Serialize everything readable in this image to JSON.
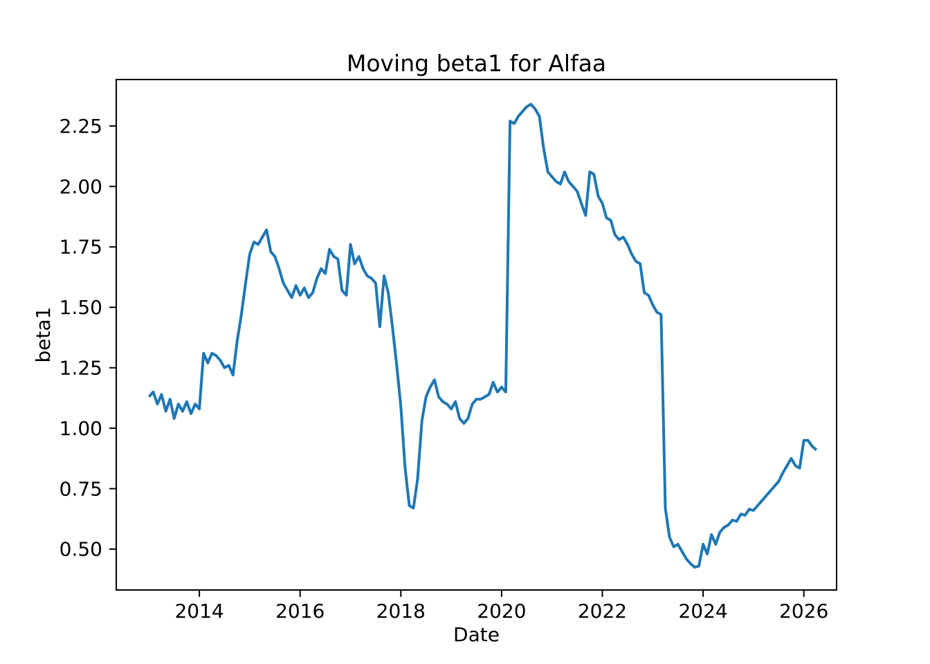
{
  "chart_data": {
    "type": "line",
    "title": "Moving beta1 for Alfaa",
    "xlabel": "Date",
    "ylabel": "beta1",
    "grid": false,
    "legend_position": "none",
    "line_color": "#1f77b4",
    "axis_color": "#000000",
    "background_color": "#ffffff",
    "xlim": [
      2012.35,
      2026.65
    ],
    "ylim": [
      0.331,
      2.442
    ],
    "x_tick_values": [
      2014,
      2016,
      2018,
      2020,
      2022,
      2024,
      2026
    ],
    "x_tick_labels": [
      "2014",
      "2016",
      "2018",
      "2020",
      "2022",
      "2024",
      "2026"
    ],
    "y_tick_values": [
      0.5,
      0.75,
      1.0,
      1.25,
      1.5,
      1.75,
      2.0,
      2.25
    ],
    "y_tick_labels": [
      "0.50",
      "0.75",
      "1.00",
      "1.25",
      "1.50",
      "1.75",
      "2.00",
      "2.25"
    ],
    "x_unit": "decimal_year",
    "series": [
      {
        "name": "Moving beta1",
        "points": [
          [
            2013.0,
            1.13
          ],
          [
            2013.083,
            1.15
          ],
          [
            2013.167,
            1.1
          ],
          [
            2013.25,
            1.14
          ],
          [
            2013.333,
            1.07
          ],
          [
            2013.417,
            1.12
          ],
          [
            2013.5,
            1.04
          ],
          [
            2013.583,
            1.1
          ],
          [
            2013.667,
            1.07
          ],
          [
            2013.75,
            1.11
          ],
          [
            2013.833,
            1.06
          ],
          [
            2013.917,
            1.1
          ],
          [
            2014.0,
            1.08
          ],
          [
            2014.083,
            1.31
          ],
          [
            2014.167,
            1.27
          ],
          [
            2014.25,
            1.31
          ],
          [
            2014.333,
            1.3
          ],
          [
            2014.417,
            1.28
          ],
          [
            2014.5,
            1.25
          ],
          [
            2014.583,
            1.26
          ],
          [
            2014.667,
            1.22
          ],
          [
            2014.75,
            1.36
          ],
          [
            2014.833,
            1.47
          ],
          [
            2014.917,
            1.6
          ],
          [
            2015.0,
            1.72
          ],
          [
            2015.083,
            1.77
          ],
          [
            2015.167,
            1.76
          ],
          [
            2015.25,
            1.79
          ],
          [
            2015.333,
            1.82
          ],
          [
            2015.417,
            1.73
          ],
          [
            2015.5,
            1.71
          ],
          [
            2015.583,
            1.66
          ],
          [
            2015.667,
            1.6
          ],
          [
            2015.75,
            1.57
          ],
          [
            2015.833,
            1.54
          ],
          [
            2015.917,
            1.59
          ],
          [
            2016.0,
            1.55
          ],
          [
            2016.083,
            1.58
          ],
          [
            2016.167,
            1.54
          ],
          [
            2016.25,
            1.56
          ],
          [
            2016.333,
            1.62
          ],
          [
            2016.417,
            1.66
          ],
          [
            2016.5,
            1.64
          ],
          [
            2016.583,
            1.74
          ],
          [
            2016.667,
            1.71
          ],
          [
            2016.75,
            1.7
          ],
          [
            2016.833,
            1.57
          ],
          [
            2016.917,
            1.55
          ],
          [
            2017.0,
            1.76
          ],
          [
            2017.083,
            1.68
          ],
          [
            2017.167,
            1.71
          ],
          [
            2017.25,
            1.66
          ],
          [
            2017.333,
            1.63
          ],
          [
            2017.417,
            1.62
          ],
          [
            2017.5,
            1.6
          ],
          [
            2017.583,
            1.42
          ],
          [
            2017.667,
            1.63
          ],
          [
            2017.75,
            1.56
          ],
          [
            2017.833,
            1.42
          ],
          [
            2017.917,
            1.26
          ],
          [
            2018.0,
            1.09
          ],
          [
            2018.083,
            0.84
          ],
          [
            2018.167,
            0.68
          ],
          [
            2018.25,
            0.67
          ],
          [
            2018.333,
            0.79
          ],
          [
            2018.417,
            1.03
          ],
          [
            2018.5,
            1.13
          ],
          [
            2018.583,
            1.17
          ],
          [
            2018.667,
            1.2
          ],
          [
            2018.75,
            1.13
          ],
          [
            2018.833,
            1.11
          ],
          [
            2018.917,
            1.1
          ],
          [
            2019.0,
            1.08
          ],
          [
            2019.083,
            1.11
          ],
          [
            2019.167,
            1.04
          ],
          [
            2019.25,
            1.02
          ],
          [
            2019.333,
            1.04
          ],
          [
            2019.417,
            1.1
          ],
          [
            2019.5,
            1.12
          ],
          [
            2019.583,
            1.12
          ],
          [
            2019.667,
            1.13
          ],
          [
            2019.75,
            1.14
          ],
          [
            2019.833,
            1.19
          ],
          [
            2019.917,
            1.15
          ],
          [
            2020.0,
            1.17
          ],
          [
            2020.083,
            1.15
          ],
          [
            2020.167,
            2.27
          ],
          [
            2020.25,
            2.26
          ],
          [
            2020.333,
            2.29
          ],
          [
            2020.417,
            2.31
          ],
          [
            2020.5,
            2.33
          ],
          [
            2020.583,
            2.34
          ],
          [
            2020.667,
            2.32
          ],
          [
            2020.75,
            2.29
          ],
          [
            2020.833,
            2.16
          ],
          [
            2020.917,
            2.06
          ],
          [
            2021.0,
            2.04
          ],
          [
            2021.083,
            2.02
          ],
          [
            2021.167,
            2.01
          ],
          [
            2021.25,
            2.06
          ],
          [
            2021.333,
            2.02
          ],
          [
            2021.417,
            2.0
          ],
          [
            2021.5,
            1.98
          ],
          [
            2021.583,
            1.93
          ],
          [
            2021.667,
            1.88
          ],
          [
            2021.75,
            2.06
          ],
          [
            2021.833,
            2.05
          ],
          [
            2021.917,
            1.96
          ],
          [
            2022.0,
            1.93
          ],
          [
            2022.083,
            1.87
          ],
          [
            2022.167,
            1.86
          ],
          [
            2022.25,
            1.8
          ],
          [
            2022.333,
            1.78
          ],
          [
            2022.417,
            1.79
          ],
          [
            2022.5,
            1.76
          ],
          [
            2022.583,
            1.72
          ],
          [
            2022.667,
            1.69
          ],
          [
            2022.75,
            1.68
          ],
          [
            2022.833,
            1.56
          ],
          [
            2022.917,
            1.55
          ],
          [
            2023.0,
            1.51
          ],
          [
            2023.083,
            1.48
          ],
          [
            2023.167,
            1.47
          ],
          [
            2023.25,
            0.67
          ],
          [
            2023.333,
            0.55
          ],
          [
            2023.417,
            0.51
          ],
          [
            2023.5,
            0.52
          ],
          [
            2023.583,
            0.49
          ],
          [
            2023.667,
            0.46
          ],
          [
            2023.75,
            0.44
          ],
          [
            2023.833,
            0.425
          ],
          [
            2023.917,
            0.43
          ],
          [
            2024.0,
            0.52
          ],
          [
            2024.083,
            0.48
          ],
          [
            2024.167,
            0.56
          ],
          [
            2024.25,
            0.52
          ],
          [
            2024.333,
            0.57
          ],
          [
            2024.417,
            0.59
          ],
          [
            2024.5,
            0.6
          ],
          [
            2024.583,
            0.62
          ],
          [
            2024.667,
            0.615
          ],
          [
            2024.75,
            0.645
          ],
          [
            2024.833,
            0.64
          ],
          [
            2024.917,
            0.665
          ],
          [
            2025.0,
            0.66
          ],
          [
            2025.083,
            0.68
          ],
          [
            2025.167,
            0.7
          ],
          [
            2025.25,
            0.72
          ],
          [
            2025.333,
            0.74
          ],
          [
            2025.417,
            0.76
          ],
          [
            2025.5,
            0.78
          ],
          [
            2025.583,
            0.815
          ],
          [
            2025.667,
            0.845
          ],
          [
            2025.75,
            0.875
          ],
          [
            2025.833,
            0.845
          ],
          [
            2025.917,
            0.835
          ],
          [
            2026.0,
            0.95
          ],
          [
            2026.083,
            0.95
          ],
          [
            2026.167,
            0.925
          ],
          [
            2026.25,
            0.91
          ]
        ]
      }
    ]
  }
}
